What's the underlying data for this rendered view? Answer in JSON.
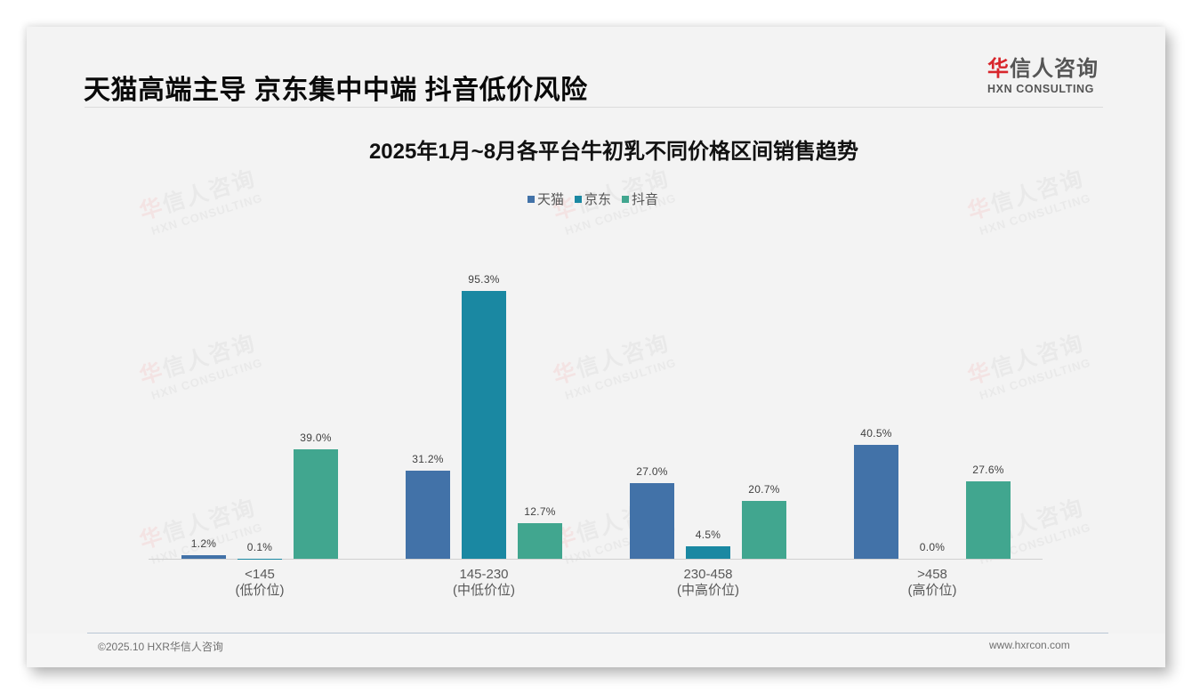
{
  "header": {
    "main_title": "天猫高端主导 京东集中中端 抖音低价风险",
    "logo": {
      "cn_red": "华",
      "cn_rest": "信人咨询",
      "en": "HXN CONSULTING"
    }
  },
  "colors": {
    "tmall": "#4272a8",
    "jd": "#1a88a2",
    "douyin": "#41a68f",
    "logo_red": "#d8262c",
    "background": "#f3f3f3"
  },
  "watermark": {
    "cn_red": "华",
    "cn_rest": "信人咨询",
    "en": "HXN CONSULTING"
  },
  "chart_data": {
    "type": "bar",
    "title": "2025年1月~8月各平台牛初乳不同价格区间销售趋势",
    "xlabel": "",
    "ylabel": "",
    "ylim": [
      0,
      100
    ],
    "grid": false,
    "legend_position": "top",
    "categories": [
      "<145\n(低价位)",
      "145-230\n(中低价位)",
      "230-458\n(中高价位)",
      ">458\n(高价位)"
    ],
    "category_lines": [
      {
        "range": "<145",
        "tier": "(低价位)"
      },
      {
        "range": "145-230",
        "tier": "(中低价位)"
      },
      {
        "range": "230-458",
        "tier": "(中高价位)"
      },
      {
        "range": ">458",
        "tier": "(高价位)"
      }
    ],
    "series": [
      {
        "name": "天猫",
        "color": "#4272a8",
        "values": [
          1.2,
          31.2,
          27.0,
          40.5
        ],
        "labels": [
          "1.2%",
          "31.2%",
          "27.0%",
          "40.5%"
        ]
      },
      {
        "name": "京东",
        "color": "#1a88a2",
        "values": [
          0.1,
          95.3,
          4.5,
          0.0
        ],
        "labels": [
          "0.1%",
          "95.3%",
          "4.5%",
          "0.0%"
        ]
      },
      {
        "name": "抖音",
        "color": "#41a68f",
        "values": [
          39.0,
          12.7,
          20.7,
          27.6
        ],
        "labels": [
          "39.0%",
          "12.7%",
          "20.7%",
          "27.6%"
        ]
      }
    ],
    "value_format": "percent, one decimal"
  },
  "footer": {
    "copyright": "©2025.10 HXR华信人咨询",
    "website": "www.hxrcon.com"
  }
}
